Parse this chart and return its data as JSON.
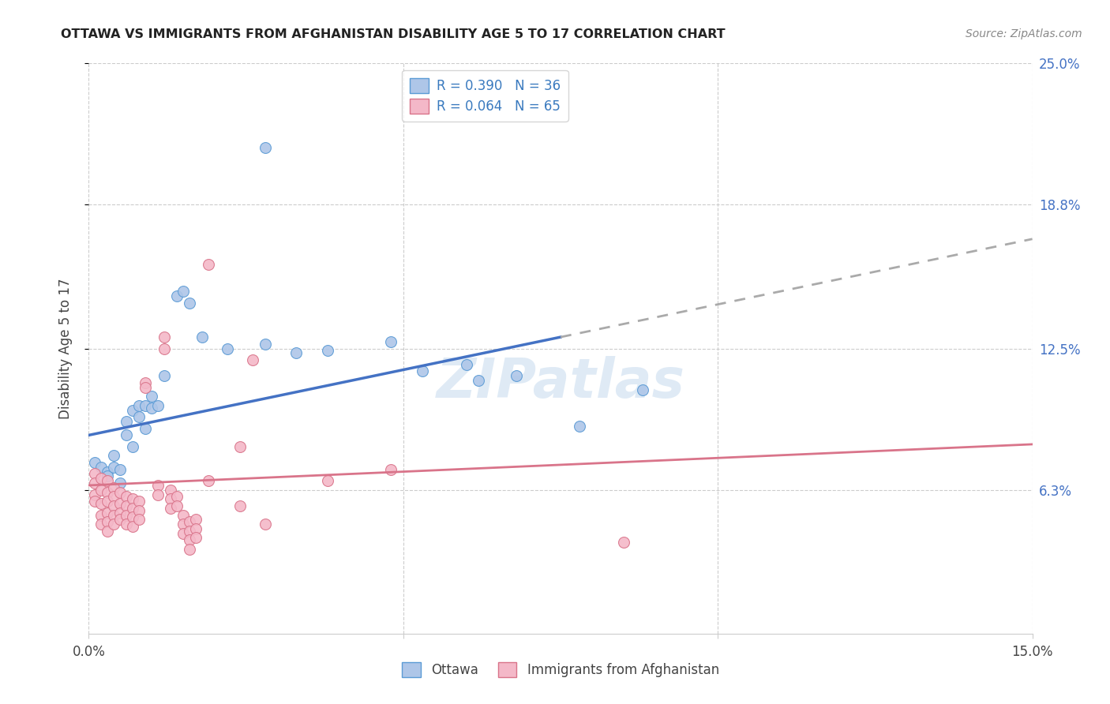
{
  "title": "OTTAWA VS IMMIGRANTS FROM AFGHANISTAN DISABILITY AGE 5 TO 17 CORRELATION CHART",
  "source": "Source: ZipAtlas.com",
  "ylabel": "Disability Age 5 to 17",
  "xlim": [
    0.0,
    0.15
  ],
  "ylim": [
    0.0,
    0.25
  ],
  "xtick_positions": [
    0.0,
    0.05,
    0.1,
    0.15
  ],
  "xtick_labels": [
    "0.0%",
    "",
    "",
    "15.0%"
  ],
  "ytick_vals": [
    0.063,
    0.125,
    0.188,
    0.25
  ],
  "ytick_labels": [
    "6.3%",
    "12.5%",
    "18.8%",
    "25.0%"
  ],
  "ottawa_color": "#aec6e8",
  "ottawa_edge_color": "#5b9bd5",
  "afghanistan_color": "#f4b8c8",
  "afghanistan_edge_color": "#d9748a",
  "trendline_ottawa_solid_color": "#4472c4",
  "trendline_ottawa_dashed_color": "#aaaaaa",
  "trendline_afghanistan_color": "#d9748a",
  "R_ottawa": 0.39,
  "N_ottawa": 36,
  "R_afghanistan": 0.064,
  "N_afghanistan": 65,
  "legend_label_ottawa": "Ottawa",
  "legend_label_afghanistan": "Immigrants from Afghanistan",
  "watermark": "ZIPatlas",
  "trendline_solid_x_end": 0.075,
  "ottawa_trend_x0": 0.0,
  "ottawa_trend_y0": 0.087,
  "ottawa_trend_x1": 0.15,
  "ottawa_trend_y1": 0.173,
  "afghanistan_trend_x0": 0.0,
  "afghanistan_trend_y0": 0.065,
  "afghanistan_trend_x1": 0.15,
  "afghanistan_trend_y1": 0.083,
  "ottawa_points": [
    [
      0.001,
      0.075
    ],
    [
      0.002,
      0.073
    ],
    [
      0.003,
      0.071
    ],
    [
      0.003,
      0.069
    ],
    [
      0.004,
      0.078
    ],
    [
      0.004,
      0.073
    ],
    [
      0.005,
      0.066
    ],
    [
      0.005,
      0.072
    ],
    [
      0.006,
      0.093
    ],
    [
      0.006,
      0.087
    ],
    [
      0.007,
      0.098
    ],
    [
      0.007,
      0.082
    ],
    [
      0.008,
      0.1
    ],
    [
      0.008,
      0.095
    ],
    [
      0.009,
      0.09
    ],
    [
      0.009,
      0.1
    ],
    [
      0.01,
      0.104
    ],
    [
      0.01,
      0.099
    ],
    [
      0.011,
      0.1
    ],
    [
      0.012,
      0.113
    ],
    [
      0.014,
      0.148
    ],
    [
      0.015,
      0.15
    ],
    [
      0.016,
      0.145
    ],
    [
      0.018,
      0.13
    ],
    [
      0.022,
      0.125
    ],
    [
      0.028,
      0.127
    ],
    [
      0.033,
      0.123
    ],
    [
      0.038,
      0.124
    ],
    [
      0.048,
      0.128
    ],
    [
      0.053,
      0.115
    ],
    [
      0.06,
      0.118
    ],
    [
      0.062,
      0.111
    ],
    [
      0.068,
      0.113
    ],
    [
      0.078,
      0.091
    ],
    [
      0.088,
      0.107
    ],
    [
      0.028,
      0.213
    ]
  ],
  "afghanistan_points": [
    [
      0.001,
      0.07
    ],
    [
      0.001,
      0.066
    ],
    [
      0.001,
      0.061
    ],
    [
      0.001,
      0.058
    ],
    [
      0.002,
      0.068
    ],
    [
      0.002,
      0.063
    ],
    [
      0.002,
      0.057
    ],
    [
      0.002,
      0.052
    ],
    [
      0.002,
      0.048
    ],
    [
      0.003,
      0.067
    ],
    [
      0.003,
      0.062
    ],
    [
      0.003,
      0.058
    ],
    [
      0.003,
      0.053
    ],
    [
      0.003,
      0.049
    ],
    [
      0.003,
      0.045
    ],
    [
      0.004,
      0.064
    ],
    [
      0.004,
      0.06
    ],
    [
      0.004,
      0.056
    ],
    [
      0.004,
      0.052
    ],
    [
      0.004,
      0.048
    ],
    [
      0.005,
      0.062
    ],
    [
      0.005,
      0.057
    ],
    [
      0.005,
      0.053
    ],
    [
      0.005,
      0.05
    ],
    [
      0.006,
      0.06
    ],
    [
      0.006,
      0.056
    ],
    [
      0.006,
      0.052
    ],
    [
      0.006,
      0.048
    ],
    [
      0.007,
      0.059
    ],
    [
      0.007,
      0.055
    ],
    [
      0.007,
      0.051
    ],
    [
      0.007,
      0.047
    ],
    [
      0.008,
      0.058
    ],
    [
      0.008,
      0.054
    ],
    [
      0.008,
      0.05
    ],
    [
      0.009,
      0.11
    ],
    [
      0.009,
      0.108
    ],
    [
      0.011,
      0.065
    ],
    [
      0.011,
      0.061
    ],
    [
      0.012,
      0.13
    ],
    [
      0.012,
      0.125
    ],
    [
      0.013,
      0.063
    ],
    [
      0.013,
      0.059
    ],
    [
      0.013,
      0.055
    ],
    [
      0.014,
      0.06
    ],
    [
      0.014,
      0.056
    ],
    [
      0.015,
      0.052
    ],
    [
      0.015,
      0.048
    ],
    [
      0.015,
      0.044
    ],
    [
      0.016,
      0.049
    ],
    [
      0.016,
      0.045
    ],
    [
      0.016,
      0.041
    ],
    [
      0.016,
      0.037
    ],
    [
      0.017,
      0.05
    ],
    [
      0.017,
      0.046
    ],
    [
      0.017,
      0.042
    ],
    [
      0.019,
      0.162
    ],
    [
      0.019,
      0.067
    ],
    [
      0.024,
      0.082
    ],
    [
      0.024,
      0.056
    ],
    [
      0.026,
      0.12
    ],
    [
      0.028,
      0.048
    ],
    [
      0.038,
      0.067
    ],
    [
      0.048,
      0.072
    ],
    [
      0.085,
      0.04
    ]
  ]
}
